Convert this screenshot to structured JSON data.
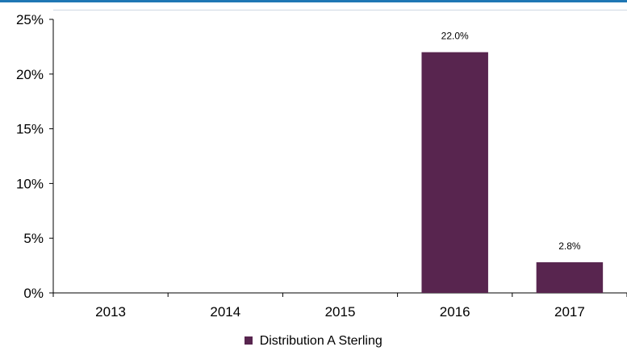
{
  "chart_data": {
    "type": "bar",
    "categories": [
      "2013",
      "2014",
      "2015",
      "2016",
      "2017"
    ],
    "series": [
      {
        "name": "Distribution A Sterling",
        "values": [
          0,
          0,
          0,
          22.0,
          2.8
        ],
        "color": "#58254f"
      }
    ],
    "data_labels": [
      "",
      "",
      "",
      "22.0%",
      "2.8%"
    ],
    "y_ticks": [
      "0%",
      "5%",
      "10%",
      "15%",
      "20%",
      "25%"
    ],
    "y_tick_values": [
      0,
      5,
      10,
      15,
      20,
      25
    ],
    "ylim": [
      0,
      25
    ],
    "grid": false,
    "legend_position": "bottom"
  }
}
